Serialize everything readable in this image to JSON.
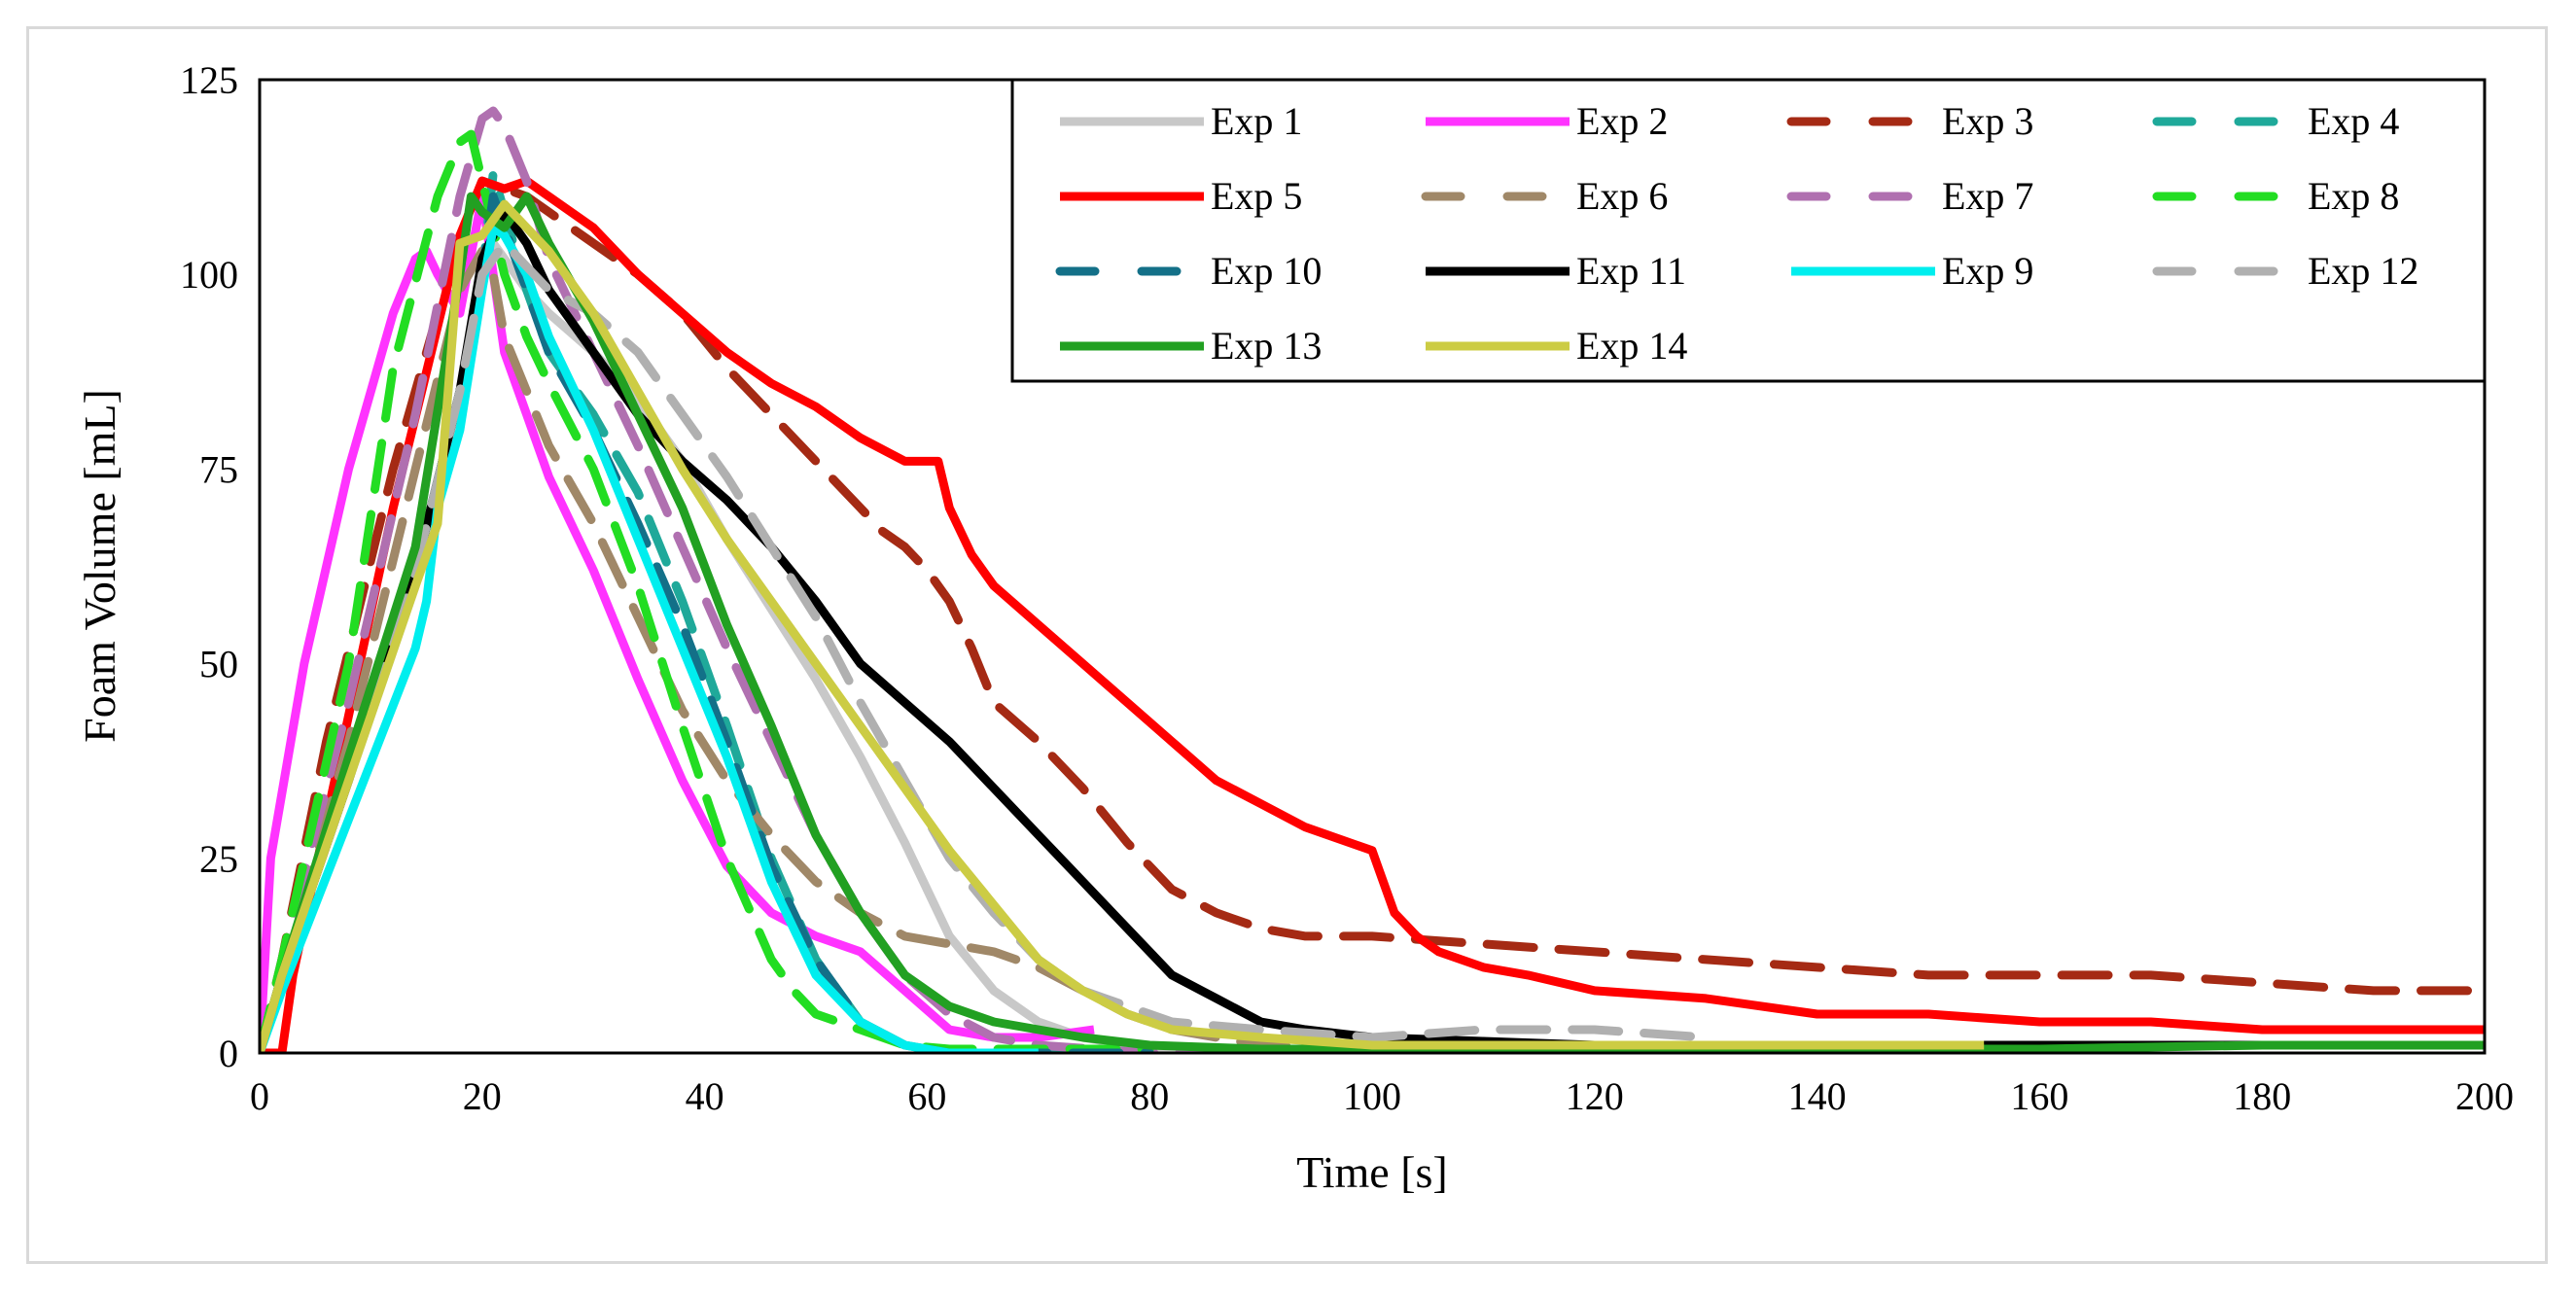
{
  "chart_data": {
    "type": "line",
    "title": "",
    "xlabel": "Time [s]",
    "ylabel": "Foam Volume [mL]",
    "xlim": [
      0,
      200
    ],
    "ylim": [
      0,
      125
    ],
    "xticks": [
      "0",
      "20",
      "40",
      "60",
      "80",
      "100",
      "120",
      "140",
      "160",
      "180",
      "200"
    ],
    "yticks": [
      "0",
      "25",
      "50",
      "75",
      "100",
      "125"
    ],
    "grid": false,
    "legend_position": "top-right",
    "series": [
      {
        "name": "Exp 1",
        "color": "#c8c8c8",
        "dash": "solid",
        "x": [
          0,
          2,
          8,
          14,
          18,
          20,
          21,
          22,
          24,
          26,
          30,
          34,
          38,
          42,
          46,
          50,
          54,
          58,
          62,
          66,
          70,
          74,
          78,
          82,
          90,
          100,
          120
        ],
        "y": [
          0,
          10,
          35,
          60,
          82,
          100,
          104,
          102,
          98,
          95,
          90,
          84,
          76,
          66,
          57,
          48,
          38,
          27,
          15,
          8,
          4,
          2,
          1,
          0.5,
          0.2,
          0,
          0
        ]
      },
      {
        "name": "Exp 2",
        "color": "#ff33ff",
        "dash": "solid",
        "x": [
          0,
          1,
          4,
          8,
          12,
          14,
          15,
          16,
          18,
          20,
          22,
          24,
          26,
          30,
          34,
          38,
          42,
          46,
          50,
          54,
          58,
          62,
          66,
          70,
          75
        ],
        "y": [
          0,
          25,
          50,
          75,
          95,
          102,
          103,
          100,
          95,
          110,
          90,
          82,
          74,
          62,
          48,
          35,
          24,
          18,
          15,
          13,
          8,
          3,
          2,
          2,
          3
        ]
      },
      {
        "name": "Exp 3",
        "color": "#a52a14",
        "dash": "dashed",
        "x": [
          0,
          2,
          6,
          12,
          18,
          20,
          22,
          24,
          26,
          30,
          34,
          38,
          42,
          46,
          50,
          54,
          56,
          58,
          60,
          62,
          64,
          66,
          70,
          74,
          78,
          82,
          86,
          90,
          94,
          100,
          110,
          120,
          130,
          140,
          150,
          160,
          170,
          180,
          190,
          200
        ],
        "y": [
          0,
          12,
          40,
          75,
          105,
          112,
          111,
          110,
          108,
          104,
          100,
          95,
          88,
          82,
          76,
          70,
          67,
          65,
          62,
          58,
          52,
          45,
          40,
          34,
          27,
          21,
          18,
          16,
          15,
          15,
          14,
          13,
          12,
          11,
          10,
          10,
          10,
          9,
          8,
          8
        ]
      },
      {
        "name": "Exp 4",
        "color": "#1fa99a",
        "dash": "dashed",
        "x": [
          0,
          2,
          8,
          14,
          18,
          20,
          21,
          22,
          24,
          26,
          30,
          34,
          38,
          42,
          46,
          50,
          54,
          58,
          62,
          70,
          80
        ],
        "y": [
          0,
          10,
          35,
          62,
          85,
          100,
          113,
          108,
          98,
          90,
          82,
          72,
          58,
          42,
          25,
          12,
          4,
          1,
          0,
          0,
          0
        ]
      },
      {
        "name": "Exp 5",
        "color": "#ff0000",
        "dash": "solid",
        "x": [
          0,
          2,
          3,
          6,
          12,
          18,
          20,
          22,
          24,
          26,
          30,
          34,
          38,
          42,
          46,
          50,
          54,
          58,
          61,
          62,
          64,
          66,
          70,
          74,
          78,
          82,
          86,
          90,
          94,
          100,
          101,
          102,
          104,
          106,
          110,
          114,
          120,
          130,
          140,
          150,
          160,
          170,
          180,
          190,
          200
        ],
        "y": [
          0,
          0,
          10,
          30,
          70,
          105,
          112,
          111,
          112,
          110,
          106,
          100,
          95,
          90,
          86,
          83,
          79,
          76,
          76,
          70,
          64,
          60,
          55,
          50,
          45,
          40,
          35,
          32,
          29,
          26,
          22,
          18,
          15,
          13,
          11,
          10,
          8,
          7,
          5,
          5,
          4,
          4,
          3,
          3,
          3
        ]
      },
      {
        "name": "Exp 6",
        "color": "#a08868",
        "dash": "dashed",
        "x": [
          0,
          2,
          8,
          14,
          18,
          20,
          21,
          22,
          24,
          26,
          30,
          34,
          38,
          42,
          46,
          50,
          54,
          58,
          62,
          66,
          70,
          74,
          78,
          82,
          90,
          100
        ],
        "y": [
          0,
          10,
          40,
          75,
          98,
          103,
          100,
          92,
          85,
          78,
          68,
          56,
          44,
          35,
          28,
          22,
          18,
          15,
          14,
          13,
          11,
          8,
          5,
          3,
          1,
          0
        ]
      },
      {
        "name": "Exp 7",
        "color": "#b070b0",
        "dash": "dashed",
        "x": [
          0,
          2,
          8,
          14,
          18,
          20,
          21,
          22,
          24,
          26,
          30,
          34,
          38,
          42,
          46,
          50,
          54,
          58,
          62,
          66,
          70,
          80,
          90
        ],
        "y": [
          0,
          12,
          45,
          82,
          110,
          120,
          121,
          119,
          112,
          102,
          90,
          78,
          65,
          52,
          40,
          28,
          18,
          10,
          5,
          2,
          1,
          0,
          0
        ]
      },
      {
        "name": "Exp 8",
        "color": "#22dd22",
        "dash": "dashed",
        "x": [
          0,
          2,
          8,
          12,
          16,
          18,
          19,
          20,
          22,
          24,
          26,
          30,
          34,
          38,
          42,
          46,
          48,
          50,
          54,
          58,
          62,
          70,
          80
        ],
        "y": [
          0,
          12,
          50,
          88,
          110,
          117,
          118,
          112,
          100,
          92,
          86,
          75,
          60,
          42,
          25,
          12,
          8,
          5,
          3,
          1,
          0.5,
          0.5,
          0.5
        ]
      },
      {
        "name": "Exp 10",
        "color": "#137088",
        "dash": "dashed",
        "x": [
          0,
          2,
          8,
          14,
          18,
          20,
          21,
          22,
          24,
          26,
          30,
          34,
          38,
          42,
          46,
          50,
          54,
          58,
          62,
          70,
          80
        ],
        "y": [
          0,
          10,
          35,
          62,
          85,
          100,
          110,
          106,
          98,
          90,
          80,
          68,
          55,
          40,
          24,
          12,
          4,
          1,
          0,
          0,
          0
        ]
      },
      {
        "name": "Exp 11",
        "color": "#000000",
        "dash": "solid",
        "x": [
          0,
          2,
          8,
          14,
          18,
          20,
          22,
          24,
          26,
          30,
          34,
          38,
          42,
          46,
          50,
          54,
          58,
          62,
          66,
          70,
          74,
          78,
          82,
          86,
          90,
          94,
          100,
          110,
          120,
          130,
          140,
          150,
          160,
          170,
          180,
          190,
          200
        ],
        "y": [
          0,
          10,
          35,
          62,
          85,
          102,
          108,
          104,
          98,
          90,
          82,
          76,
          71,
          65,
          58,
          50,
          45,
          40,
          34,
          28,
          22,
          16,
          10,
          7,
          4,
          3,
          2,
          1.5,
          1,
          1,
          1,
          1,
          1,
          1,
          1,
          1,
          1
        ]
      },
      {
        "name": "Exp 9",
        "color": "#00eeee",
        "dash": "solid",
        "x": [
          0,
          2,
          8,
          14,
          15,
          16,
          18,
          20,
          21,
          22,
          24,
          26,
          30,
          34,
          38,
          42,
          46,
          48,
          50,
          54,
          58,
          62,
          70
        ],
        "y": [
          0,
          8,
          30,
          52,
          58,
          70,
          80,
          98,
          106,
          105,
          100,
          92,
          80,
          66,
          52,
          38,
          22,
          16,
          10,
          4,
          1,
          0,
          0
        ]
      },
      {
        "name": "Exp 12",
        "color": "#b0b0b0",
        "dash": "dashed",
        "x": [
          0,
          2,
          8,
          14,
          18,
          20,
          22,
          24,
          26,
          30,
          34,
          38,
          42,
          46,
          50,
          54,
          58,
          62,
          66,
          70,
          74,
          78,
          82,
          90,
          100,
          110,
          120,
          130
        ],
        "y": [
          0,
          10,
          35,
          62,
          85,
          100,
          104,
          101,
          98,
          95,
          90,
          82,
          74,
          65,
          56,
          45,
          35,
          25,
          18,
          12,
          8,
          6,
          4,
          3,
          2,
          3,
          3,
          2
        ]
      },
      {
        "name": "Exp 13",
        "color": "#22a022",
        "dash": "solid",
        "x": [
          0,
          2,
          8,
          14,
          18,
          19,
          20,
          22,
          24,
          26,
          30,
          34,
          38,
          42,
          46,
          50,
          54,
          58,
          62,
          66,
          70,
          74,
          80,
          90,
          100,
          120,
          140,
          160,
          180,
          200
        ],
        "y": [
          0,
          10,
          38,
          65,
          100,
          110,
          108,
          106,
          110,
          104,
          94,
          82,
          70,
          55,
          42,
          28,
          18,
          10,
          6,
          4,
          3,
          2,
          1,
          0.5,
          0.5,
          0.5,
          0.5,
          0.5,
          1,
          1
        ]
      },
      {
        "name": "Exp 14",
        "color": "#cccc44",
        "dash": "solid",
        "x": [
          0,
          2,
          8,
          14,
          16,
          18,
          20,
          22,
          24,
          26,
          30,
          34,
          38,
          42,
          46,
          50,
          54,
          58,
          62,
          66,
          70,
          74,
          78,
          82,
          90,
          100,
          110,
          120,
          130,
          140,
          150,
          155
        ],
        "y": [
          0,
          10,
          35,
          60,
          68,
          104,
          105,
          109,
          106,
          103,
          95,
          85,
          75,
          66,
          58,
          50,
          42,
          34,
          26,
          19,
          12,
          8,
          5,
          3,
          2,
          1,
          1,
          1,
          1,
          1,
          1,
          1
        ]
      }
    ]
  }
}
